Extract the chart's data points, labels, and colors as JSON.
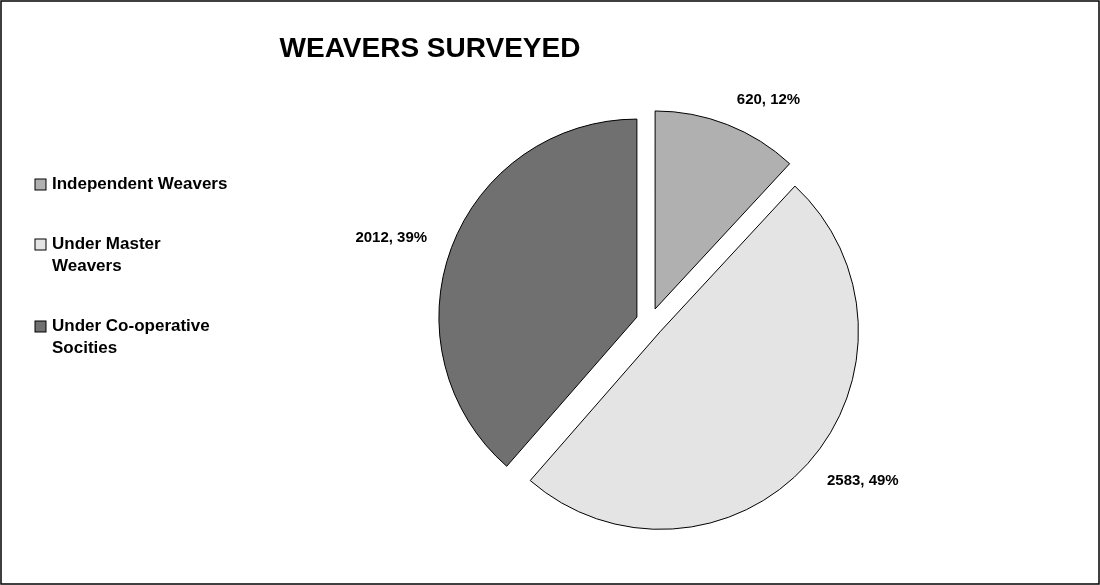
{
  "chart_data": {
    "type": "pie",
    "title": "WEAVERS SURVEYED",
    "categories": [
      "Independent Weavers",
      "Under Master Weavers",
      "Under Co-operative Socities"
    ],
    "values": [
      620,
      2583,
      2012
    ],
    "colors": [
      "#b0b0b0",
      "#e4e4e4",
      "#707070"
    ],
    "value_labels": [
      "620, 12%",
      "2583, 49%",
      "2012, 39%"
    ],
    "legend": "left"
  }
}
